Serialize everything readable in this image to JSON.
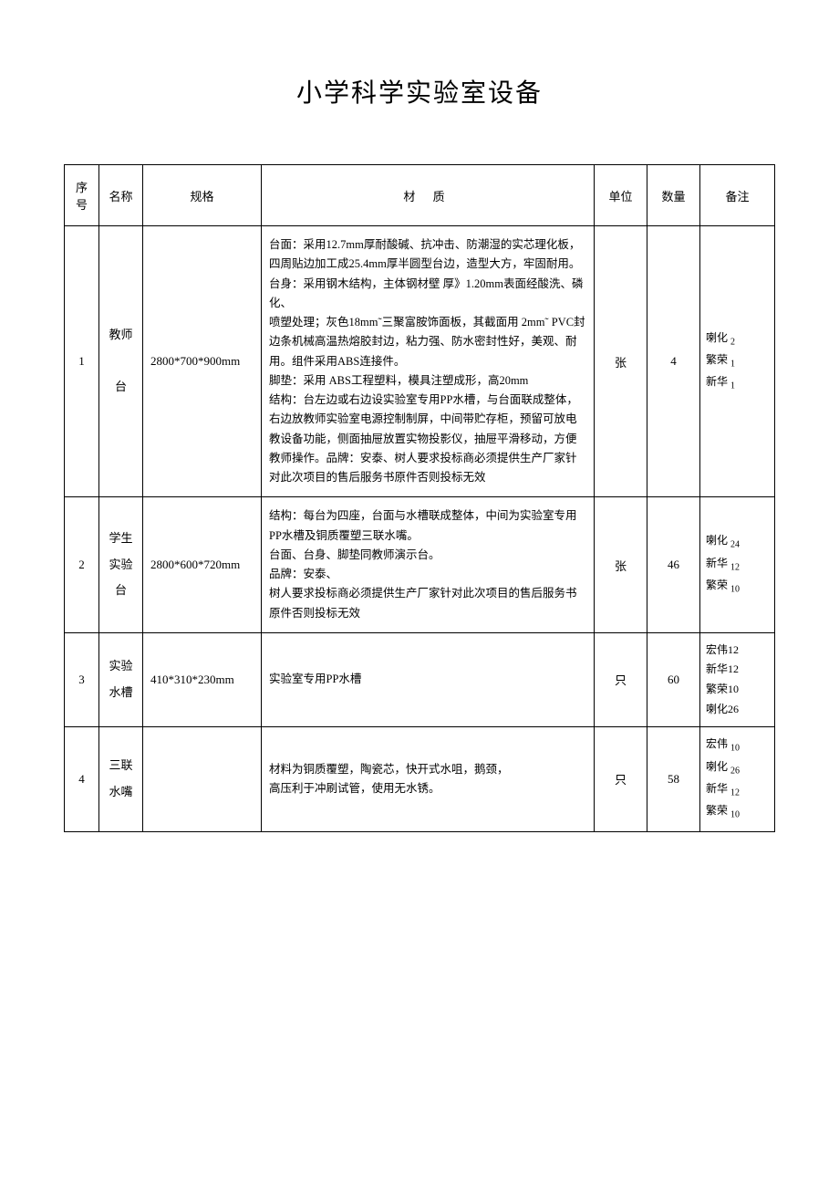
{
  "title": "小学科学实验室设备",
  "headers": {
    "no": "序号",
    "name": "名称",
    "spec": "规格",
    "material": "材 质",
    "unit": "单位",
    "qty": "数量",
    "note": "备注"
  },
  "rows": [
    {
      "no": "1",
      "name": "教师\n\n台",
      "spec": "2800*700*900mm",
      "material": "台面：采用12.7mm厚耐酸碱、抗冲击、防潮湿的实芯理化板，四周贴边加工成25.4mm厚半圆型台边，造型大方，牢固耐用。\n台身：采用钢木结构，主体钢材壁 厚》1.20mm表面经酸洗、磷化、\n喷塑处理；灰色18mm˜三聚富胺饰面板，其截面用 2mm˜ PVC封边条机械高温热熔胶封边，粘力强、防水密封性好，美观、耐用。组件采用ABS连接件。\n脚垫：采用 ABS工程塑料，模具注塑成形，高20mm\n结构：台左边或右边设实验室专用PP水槽，与台面联成整体，右边放教师实验室电源控制制屏，中间带贮存柜，预留可放电教设备功能，侧面抽屉放置实物投影仪，抽屉平滑移动，方便教师操作。品牌：安泰、树人要求投标商必须提供生产厂家针对此次项目的售后服务书原件否则投标无效",
      "unit": "张",
      "qty": "4",
      "note_items": [
        {
          "label": "喇化",
          "sub": "2"
        },
        {
          "label": "繁荣",
          "sub": "1"
        },
        {
          "label": "新华",
          "sub": "1"
        }
      ]
    },
    {
      "no": "2",
      "name": "学生\n实验 台",
      "spec": "2800*600*720mm",
      "material": "结构：每台为四座，台面与水槽联成整体，中间为实验室专用      PP水槽及铜质覆塑三联水嘴。\n台面、台身、脚垫同教师演示台。\n品牌：安泰、\n树人要求投标商必须提供生产厂家针对此次项目的售后服务书原件否则投标无效",
      "unit": "张",
      "qty": "46",
      "note_items": [
        {
          "label": "喇化",
          "sub": "24"
        },
        {
          "label": "新华",
          "sub": "12"
        },
        {
          "label": "繁荣",
          "sub": "10"
        }
      ]
    },
    {
      "no": "3",
      "name": "实验\n水槽",
      "spec": "410*310*230mm",
      "material": "实验室专用PP水槽",
      "unit": "只",
      "qty": "60",
      "note_items": [
        {
          "label": "宏伟",
          "sub": "12",
          "inline": true
        },
        {
          "label": "新华",
          "sub": "12",
          "inline": true
        },
        {
          "label": "繁荣",
          "sub": "10",
          "inline": true
        },
        {
          "label": "喇化",
          "sub": "26",
          "inline": true
        }
      ]
    },
    {
      "no": "4",
      "name": "三联\n水嘴",
      "spec": "",
      "material": "材料为铜质覆塑，陶瓷芯，快开式水咀，鹅颈，\n高压利于冲刷试管，使用无水锈。",
      "unit": "只",
      "qty": "58",
      "note_items": [
        {
          "label": "宏伟",
          "sub": "10"
        },
        {
          "label": "喇化",
          "sub": "26"
        },
        {
          "label": "新华",
          "sub": "12"
        },
        {
          "label": "繁荣",
          "sub": "10"
        }
      ]
    }
  ]
}
